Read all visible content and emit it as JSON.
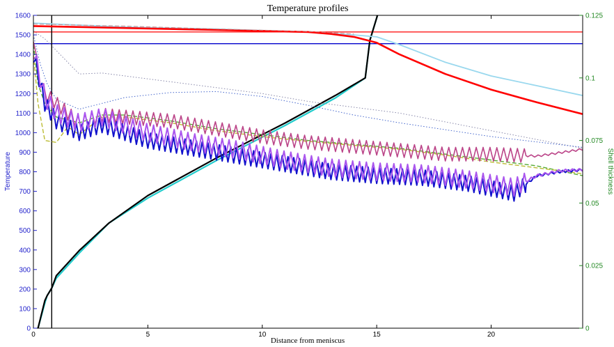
{
  "chart_data": {
    "type": "line",
    "title": "Temperature profiles",
    "xlabel": "Distance from meniscus",
    "ylabel_left": "Temperature",
    "ylabel_right": "Shell thickness",
    "xlim": [
      0,
      24
    ],
    "ylim_left": [
      0,
      1600
    ],
    "ylim_right": [
      0,
      0.125
    ],
    "x_ticks": [
      "0",
      "5",
      "10",
      "15",
      "20"
    ],
    "x_tick_values": [
      0,
      5,
      10,
      15,
      20
    ],
    "y_left_ticks": [
      "0",
      "100",
      "200",
      "300",
      "400",
      "500",
      "600",
      "700",
      "800",
      "900",
      "1000",
      "1100",
      "1200",
      "1300",
      "1400",
      "1500",
      "1600"
    ],
    "y_left_tick_values": [
      0,
      100,
      200,
      300,
      400,
      500,
      600,
      700,
      800,
      900,
      1000,
      1100,
      1200,
      1300,
      1400,
      1500,
      1600
    ],
    "y_right_ticks": [
      "0",
      "0.025",
      "0.05",
      "0.075",
      "0.1",
      "0.125"
    ],
    "y_right_tick_values": [
      0,
      0.025,
      0.05,
      0.075,
      0.1,
      0.125
    ],
    "colors": {
      "left_axis": "#2222cc",
      "right_axis": "#228822",
      "black": "#000000",
      "red": "#ff0000",
      "blue": "#0000cc",
      "lightblue": "#99d8ee",
      "cyan": "#22cccc",
      "purple": "#aa55ee",
      "darkblue": "#1111cc",
      "magenta": "#bb4488",
      "green": "#55aa33",
      "olive": "#bbbb33"
    },
    "hlines_left": [
      {
        "y": 1515,
        "color": "#ff0000"
      },
      {
        "y": 1455,
        "color": "#0000cc"
      }
    ],
    "vline_x": 0.8,
    "series": [
      {
        "axis": "right",
        "color": "#22cccc",
        "width": 2.2,
        "style": "solid",
        "points": [
          [
            0.2,
            0
          ],
          [
            0.5,
            0.01
          ],
          [
            0.6,
            0.013
          ],
          [
            0.8,
            0.016
          ],
          [
            1.0,
            0.02
          ],
          [
            2,
            0.03
          ],
          [
            3.3,
            0.042
          ],
          [
            5,
            0.052
          ],
          [
            8,
            0.067
          ],
          [
            11,
            0.081
          ],
          [
            13.2,
            0.092
          ],
          [
            14.5,
            0.1
          ],
          [
            14.7,
            0.115
          ],
          [
            15.2,
            0.13
          ]
        ]
      },
      {
        "axis": "right",
        "color": "#000000",
        "width": 2.2,
        "style": "solid",
        "points": [
          [
            0.2,
            0
          ],
          [
            0.5,
            0.011
          ],
          [
            0.6,
            0.013
          ],
          [
            0.8,
            0.016
          ],
          [
            1.0,
            0.021
          ],
          [
            2,
            0.031
          ],
          [
            3.3,
            0.042
          ],
          [
            5,
            0.053
          ],
          [
            8,
            0.068
          ],
          [
            11,
            0.082
          ],
          [
            13.2,
            0.093
          ],
          [
            14.5,
            0.1
          ],
          [
            14.7,
            0.115
          ],
          [
            15.2,
            0.13
          ]
        ]
      },
      {
        "axis": "left",
        "color": "#99d8ee",
        "width": 1.8,
        "style": "solid",
        "points": [
          [
            0,
            1560
          ],
          [
            4,
            1540
          ],
          [
            8,
            1530
          ],
          [
            12,
            1515
          ],
          [
            14,
            1500
          ],
          [
            15,
            1490
          ],
          [
            16,
            1450
          ],
          [
            18,
            1360
          ],
          [
            20,
            1290
          ],
          [
            22,
            1240
          ],
          [
            24,
            1190
          ]
        ]
      },
      {
        "axis": "left",
        "color": "#ff0000",
        "width": 2.6,
        "style": "solid",
        "points": [
          [
            0,
            1545
          ],
          [
            4,
            1535
          ],
          [
            8,
            1525
          ],
          [
            12,
            1515
          ],
          [
            13,
            1505
          ],
          [
            14,
            1490
          ],
          [
            15,
            1460
          ],
          [
            16,
            1400
          ],
          [
            18,
            1300
          ],
          [
            20,
            1220
          ],
          [
            22,
            1155
          ],
          [
            24,
            1095
          ]
        ]
      },
      {
        "axis": "left",
        "color": "#cc8888",
        "width": 1,
        "style": "dashed",
        "points": [
          [
            0,
            1555
          ],
          [
            4,
            1545
          ],
          [
            8,
            1530
          ],
          [
            12,
            1518
          ],
          [
            14,
            1505
          ]
        ]
      },
      {
        "axis": "left",
        "color": "#8888aa",
        "width": 1,
        "style": "dotted",
        "points": [
          [
            0,
            1520
          ],
          [
            0.5,
            1480
          ],
          [
            1,
            1420
          ],
          [
            1.5,
            1360
          ],
          [
            2,
            1300
          ],
          [
            3,
            1305
          ],
          [
            4,
            1290
          ],
          [
            6,
            1260
          ],
          [
            8,
            1230
          ],
          [
            10,
            1200
          ],
          [
            12,
            1160
          ],
          [
            16,
            1100
          ],
          [
            20,
            1010
          ],
          [
            24,
            920
          ]
        ]
      },
      {
        "axis": "left",
        "color": "#4466cc",
        "width": 1,
        "style": "dotted",
        "points": [
          [
            0,
            1500
          ],
          [
            0.3,
            1350
          ],
          [
            0.6,
            1250
          ],
          [
            1,
            1170
          ],
          [
            2,
            1120
          ],
          [
            3,
            1150
          ],
          [
            4,
            1180
          ],
          [
            6,
            1205
          ],
          [
            8,
            1210
          ],
          [
            10,
            1185
          ],
          [
            12,
            1140
          ],
          [
            14,
            1090
          ],
          [
            16,
            1050
          ],
          [
            20,
            980
          ],
          [
            24,
            925
          ]
        ]
      },
      {
        "axis": "left",
        "color": "#55aa33",
        "width": 1.4,
        "style": "dashed",
        "points": [
          [
            0,
            1450
          ],
          [
            0.2,
            1250
          ],
          [
            0.5,
            1150
          ],
          [
            1,
            1080
          ],
          [
            2,
            1050
          ],
          [
            3,
            1090
          ],
          [
            4,
            1090
          ],
          [
            6,
            1060
          ],
          [
            8,
            1020
          ],
          [
            10,
            990
          ],
          [
            12,
            960
          ],
          [
            14,
            940
          ],
          [
            16,
            920
          ],
          [
            18,
            890
          ],
          [
            20,
            860
          ],
          [
            22,
            830
          ],
          [
            24,
            780
          ]
        ]
      },
      {
        "axis": "left",
        "color": "#bbbb33",
        "width": 1.4,
        "style": "dashed",
        "points": [
          [
            0,
            1400
          ],
          [
            0.2,
            1150
          ],
          [
            0.5,
            960
          ],
          [
            1,
            950
          ],
          [
            1.5,
            1030
          ],
          [
            2,
            990
          ],
          [
            3,
            1080
          ],
          [
            4,
            1080
          ],
          [
            6,
            1050
          ],
          [
            8,
            1010
          ],
          [
            10,
            980
          ],
          [
            12,
            955
          ],
          [
            14,
            935
          ],
          [
            16,
            915
          ],
          [
            18,
            885
          ],
          [
            20,
            850
          ],
          [
            22,
            820
          ],
          [
            24,
            790
          ]
        ]
      },
      {
        "axis": "left",
        "color": "#bb4488",
        "width": 1.6,
        "style": "zigzag",
        "amp": 35,
        "period": 0.3,
        "points": [
          [
            0,
            1500
          ],
          [
            0.2,
            1300
          ],
          [
            0.5,
            1200
          ],
          [
            1,
            1150
          ],
          [
            2,
            1050
          ],
          [
            3,
            1090
          ],
          [
            4,
            1080
          ],
          [
            6,
            1060
          ],
          [
            8,
            1020
          ],
          [
            10,
            980
          ],
          [
            12,
            950
          ],
          [
            14,
            930
          ],
          [
            16,
            910
          ],
          [
            18,
            890
          ],
          [
            20,
            890
          ],
          [
            22,
            880
          ],
          [
            24,
            915
          ]
        ]
      },
      {
        "axis": "left",
        "color": "#1111cc",
        "width": 2,
        "style": "zigzag",
        "amp": 40,
        "period": 0.25,
        "points": [
          [
            0,
            1400
          ],
          [
            0.5,
            1150
          ],
          [
            1,
            1060
          ],
          [
            2,
            1000
          ],
          [
            3,
            1040
          ],
          [
            5,
            960
          ],
          [
            7,
            920
          ],
          [
            9,
            880
          ],
          [
            11,
            840
          ],
          [
            13,
            800
          ],
          [
            15,
            780
          ],
          [
            17,
            770
          ],
          [
            19,
            740
          ],
          [
            21,
            690
          ],
          [
            22,
            780
          ],
          [
            23,
            800
          ],
          [
            24,
            810
          ]
        ]
      },
      {
        "axis": "left",
        "color": "#aa55ee",
        "width": 2,
        "style": "zigzag",
        "amp": 45,
        "period": 0.3,
        "points": [
          [
            0,
            1420
          ],
          [
            0.5,
            1180
          ],
          [
            1,
            1100
          ],
          [
            2,
            1050
          ],
          [
            3,
            1080
          ],
          [
            5,
            1000
          ],
          [
            7,
            950
          ],
          [
            9,
            910
          ],
          [
            11,
            860
          ],
          [
            13,
            820
          ],
          [
            15,
            800
          ],
          [
            17,
            790
          ],
          [
            19,
            760
          ],
          [
            21,
            720
          ],
          [
            22,
            780
          ],
          [
            23,
            805
          ],
          [
            24,
            810
          ]
        ]
      }
    ]
  }
}
